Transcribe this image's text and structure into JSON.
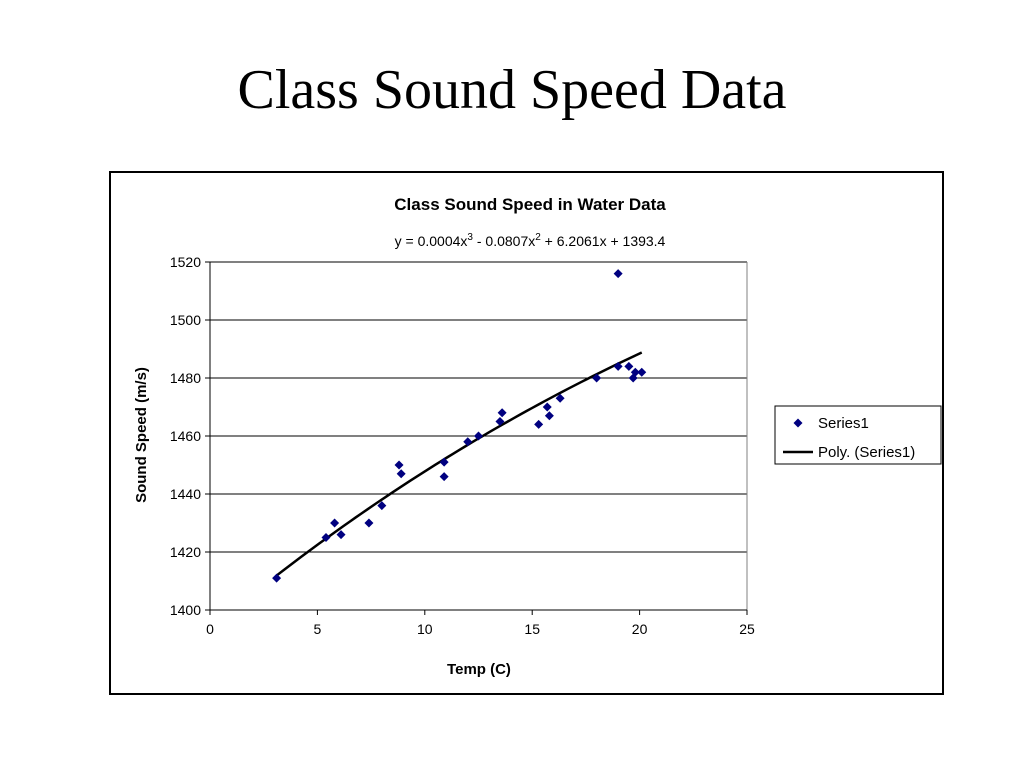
{
  "slide": {
    "title": "Class Sound Speed Data"
  },
  "chart_data": {
    "type": "scatter",
    "title": "Class Sound Speed in Water Data",
    "equation": {
      "prefix": "y = 0.0004x",
      "exp1": "3",
      "mid": " - 0.0807x",
      "exp2": "2",
      "suffix": " + 6.2061x + 1393.4"
    },
    "xlabel": "Temp (C)",
    "ylabel": "Sound Speed (m/s)",
    "xlim": [
      0,
      25
    ],
    "ylim": [
      1400,
      1520
    ],
    "xticks": [
      0,
      5,
      10,
      15,
      20,
      25
    ],
    "yticks": [
      1400,
      1420,
      1440,
      1460,
      1480,
      1500,
      1520
    ],
    "gridlines": "horizontal",
    "legend_position": "right",
    "series": [
      {
        "name": "Series1",
        "marker": "diamond",
        "color": "#000080",
        "points": [
          [
            3.1,
            1411
          ],
          [
            5.4,
            1425
          ],
          [
            5.8,
            1430
          ],
          [
            6.1,
            1426
          ],
          [
            7.4,
            1430
          ],
          [
            8.0,
            1436
          ],
          [
            8.8,
            1450
          ],
          [
            8.9,
            1447
          ],
          [
            10.9,
            1451
          ],
          [
            10.9,
            1446
          ],
          [
            12.0,
            1458
          ],
          [
            12.5,
            1460
          ],
          [
            13.5,
            1465
          ],
          [
            13.6,
            1468
          ],
          [
            15.3,
            1464
          ],
          [
            15.7,
            1470
          ],
          [
            15.8,
            1467
          ],
          [
            16.3,
            1473
          ],
          [
            18.0,
            1480
          ],
          [
            19.0,
            1484
          ],
          [
            19.0,
            1516
          ],
          [
            19.5,
            1484
          ],
          [
            19.7,
            1480
          ],
          [
            19.8,
            1482
          ],
          [
            20.1,
            1482
          ]
        ]
      },
      {
        "name": "Poly. (Series1)",
        "type": "trendline",
        "color": "#000000",
        "coefficients": [
          0.0004,
          -0.0807,
          6.2061,
          1393.4
        ],
        "x_range": [
          3.1,
          20.1
        ]
      }
    ]
  }
}
